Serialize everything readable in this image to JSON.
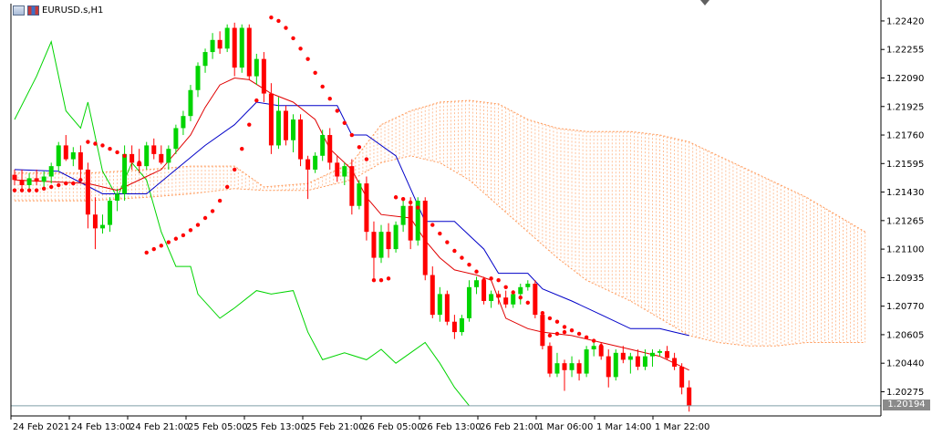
{
  "window": {
    "symbol_title": "EURUSD.s,H1"
  },
  "colors": {
    "bull": "#00d400",
    "bear": "#ff0000",
    "tenkan": "#e00000",
    "kijun": "#0000c8",
    "chikou": "#00d400",
    "cloud": "#ff9a5a",
    "sar": "#ff0000",
    "grid_frame": "#000000",
    "current_price_line": "#7f9fa6"
  },
  "current_price": "1.20194",
  "chart_data": {
    "type": "candlestick",
    "title": "EURUSD.s,H1",
    "ylim": [
      1.20135,
      1.2252
    ],
    "y_ticks": [
      "1.22420",
      "1.22255",
      "1.22090",
      "1.21925",
      "1.21760",
      "1.21595",
      "1.21430",
      "1.21265",
      "1.21100",
      "1.20935",
      "1.20770",
      "1.20605",
      "1.20440",
      "1.20275"
    ],
    "x_ticks": [
      "24 Feb 2021",
      "24 Feb 13:00",
      "24 Feb 21:00",
      "25 Feb 05:00",
      "25 Feb 13:00",
      "25 Feb 21:00",
      "26 Feb 05:00",
      "26 Feb 13:00",
      "26 Feb 21:00",
      "1 Mar 06:00",
      "1 Mar 14:00",
      "1 Mar 22:00"
    ],
    "candles": [
      [
        1.2153,
        1.2156,
        1.2147,
        1.215
      ],
      [
        1.215,
        1.2156,
        1.2144,
        1.2147
      ],
      [
        1.2147,
        1.2154,
        1.2143,
        1.2151
      ],
      [
        1.2151,
        1.2156,
        1.2147,
        1.2149
      ],
      [
        1.2149,
        1.2155,
        1.2144,
        1.2152
      ],
      [
        1.2152,
        1.216,
        1.2148,
        1.2158
      ],
      [
        1.2158,
        1.2172,
        1.2155,
        1.217
      ],
      [
        1.217,
        1.2176,
        1.2161,
        1.2162
      ],
      [
        1.2162,
        1.2169,
        1.2158,
        1.2166
      ],
      [
        1.2166,
        1.217,
        1.215,
        1.2156
      ],
      [
        1.2156,
        1.216,
        1.2122,
        1.213
      ],
      [
        1.213,
        1.214,
        1.211,
        1.2122
      ],
      [
        1.2122,
        1.213,
        1.2119,
        1.2124
      ],
      [
        1.2124,
        1.214,
        1.212,
        1.2138
      ],
      [
        1.2138,
        1.2145,
        1.2132,
        1.2142
      ],
      [
        1.2142,
        1.217,
        1.2138,
        1.2165
      ],
      [
        1.2165,
        1.217,
        1.2156,
        1.216
      ],
      [
        1.216,
        1.2168,
        1.2154,
        1.2158
      ],
      [
        1.2158,
        1.2172,
        1.2156,
        1.217
      ],
      [
        1.217,
        1.2174,
        1.2162,
        1.2165
      ],
      [
        1.2165,
        1.217,
        1.2159,
        1.216
      ],
      [
        1.216,
        1.217,
        1.2156,
        1.2168
      ],
      [
        1.2168,
        1.2182,
        1.2165,
        1.218
      ],
      [
        1.218,
        1.219,
        1.2176,
        1.2187
      ],
      [
        1.2187,
        1.2205,
        1.2184,
        1.2202
      ],
      [
        1.2202,
        1.2218,
        1.2198,
        1.2216
      ],
      [
        1.2216,
        1.2226,
        1.2212,
        1.2224
      ],
      [
        1.2224,
        1.2235,
        1.222,
        1.2231
      ],
      [
        1.2231,
        1.2236,
        1.2223,
        1.2226
      ],
      [
        1.2226,
        1.224,
        1.2224,
        1.2238
      ],
      [
        1.2238,
        1.2241,
        1.221,
        1.2215
      ],
      [
        1.2215,
        1.224,
        1.2212,
        1.2238
      ],
      [
        1.2238,
        1.224,
        1.2208,
        1.221
      ],
      [
        1.221,
        1.2223,
        1.2205,
        1.222
      ],
      [
        1.222,
        1.2224,
        1.2195,
        1.22
      ],
      [
        1.22,
        1.2206,
        1.2165,
        1.217
      ],
      [
        1.217,
        1.2198,
        1.2168,
        1.219
      ],
      [
        1.219,
        1.2193,
        1.217,
        1.2173
      ],
      [
        1.2173,
        1.2188,
        1.2166,
        1.2185
      ],
      [
        1.2185,
        1.2188,
        1.2158,
        1.2162
      ],
      [
        1.2162,
        1.2164,
        1.2139,
        1.2156
      ],
      [
        1.2156,
        1.2166,
        1.2154,
        1.2164
      ],
      [
        1.2164,
        1.2179,
        1.2161,
        1.2176
      ],
      [
        1.2176,
        1.218,
        1.2156,
        1.216
      ],
      [
        1.216,
        1.2164,
        1.2149,
        1.2152
      ],
      [
        1.2152,
        1.216,
        1.2147,
        1.2158
      ],
      [
        1.2158,
        1.2162,
        1.213,
        1.2135
      ],
      [
        1.2135,
        1.215,
        1.2133,
        1.2148
      ],
      [
        1.2148,
        1.2152,
        1.2115,
        1.212
      ],
      [
        1.212,
        1.2126,
        1.2093,
        1.2105
      ],
      [
        1.2105,
        1.2124,
        1.2102,
        1.212
      ],
      [
        1.212,
        1.2125,
        1.2105,
        1.211
      ],
      [
        1.211,
        1.2126,
        1.2108,
        1.2124
      ],
      [
        1.2124,
        1.2138,
        1.212,
        1.2135
      ],
      [
        1.2135,
        1.214,
        1.211,
        1.2115
      ],
      [
        1.2115,
        1.214,
        1.2112,
        1.2138
      ],
      [
        1.2138,
        1.214,
        1.2092,
        1.2095
      ],
      [
        1.2095,
        1.21,
        1.207,
        1.2072
      ],
      [
        1.2072,
        1.2088,
        1.2068,
        1.2084
      ],
      [
        1.2084,
        1.2086,
        1.2066,
        1.2068
      ],
      [
        1.2068,
        1.2072,
        1.2058,
        1.2062
      ],
      [
        1.2062,
        1.2072,
        1.206,
        1.207
      ],
      [
        1.207,
        1.2092,
        1.2068,
        1.2088
      ],
      [
        1.2088,
        1.2094,
        1.2084,
        1.2092
      ],
      [
        1.2092,
        1.2094,
        1.2078,
        1.208
      ],
      [
        1.208,
        1.2086,
        1.2076,
        1.2084
      ],
      [
        1.2084,
        1.2086,
        1.2078,
        1.2082
      ],
      [
        1.2082,
        1.2086,
        1.2076,
        1.2078
      ],
      [
        1.2078,
        1.2086,
        1.2076,
        1.2084
      ],
      [
        1.2084,
        1.209,
        1.2078,
        1.2088
      ],
      [
        1.2088,
        1.2092,
        1.2086,
        1.209
      ],
      [
        1.209,
        1.2092,
        1.207,
        1.2072
      ],
      [
        1.2072,
        1.2074,
        1.2052,
        1.2054
      ],
      [
        1.2054,
        1.2056,
        1.2036,
        1.2038
      ],
      [
        1.2038,
        1.205,
        1.2036,
        1.2044
      ],
      [
        1.2044,
        1.2046,
        1.2028,
        1.204
      ],
      [
        1.204,
        1.2048,
        1.2036,
        1.2044
      ],
      [
        1.2044,
        1.2046,
        1.2034,
        1.2038
      ],
      [
        1.2038,
        1.2054,
        1.2036,
        1.2052
      ],
      [
        1.2052,
        1.2056,
        1.2048,
        1.2054
      ],
      [
        1.2054,
        1.2056,
        1.2046,
        1.2048
      ],
      [
        1.2048,
        1.2052,
        1.203,
        1.2036
      ],
      [
        1.2036,
        1.2052,
        1.2034,
        1.205
      ],
      [
        1.205,
        1.2054,
        1.2044,
        1.2046
      ],
      [
        1.2046,
        1.205,
        1.2038,
        1.2048
      ],
      [
        1.2048,
        1.2052,
        1.204,
        1.2042
      ],
      [
        1.2042,
        1.2052,
        1.204,
        1.2048
      ],
      [
        1.2048,
        1.2052,
        1.2042,
        1.205
      ],
      [
        1.205,
        1.2052,
        1.2048,
        1.2051
      ],
      [
        1.2051,
        1.2054,
        1.2046,
        1.2047
      ],
      [
        1.2047,
        1.205,
        1.204,
        1.2042
      ],
      [
        1.2042,
        1.2044,
        1.2026,
        1.203
      ],
      [
        1.203,
        1.2034,
        1.2016,
        1.20194
      ]
    ],
    "tenkan": [
      [
        0,
        1.215
      ],
      [
        10,
        1.2148
      ],
      [
        14,
        1.2144
      ],
      [
        18,
        1.2152
      ],
      [
        20,
        1.2156
      ],
      [
        24,
        1.2176
      ],
      [
        26,
        1.2192
      ],
      [
        28,
        1.2205
      ],
      [
        30,
        1.2209
      ],
      [
        32,
        1.2208
      ],
      [
        35,
        1.22
      ],
      [
        38,
        1.2195
      ],
      [
        41,
        1.2185
      ],
      [
        43,
        1.2168
      ],
      [
        46,
        1.2156
      ],
      [
        48,
        1.214
      ],
      [
        50,
        1.213
      ],
      [
        54,
        1.2128
      ],
      [
        56,
        1.2115
      ],
      [
        58,
        1.2105
      ],
      [
        60,
        1.2098
      ],
      [
        63,
        1.2095
      ],
      [
        65,
        1.2092
      ],
      [
        67,
        1.207
      ],
      [
        70,
        1.2064
      ],
      [
        72,
        1.2062
      ],
      [
        76,
        1.206
      ],
      [
        80,
        1.2056
      ],
      [
        84,
        1.2052
      ],
      [
        88,
        1.2048
      ],
      [
        92,
        1.204
      ]
    ],
    "kijun": [
      [
        0,
        1.2156
      ],
      [
        6,
        1.2155
      ],
      [
        12,
        1.2142
      ],
      [
        18,
        1.2142
      ],
      [
        22,
        1.2156
      ],
      [
        26,
        1.217
      ],
      [
        30,
        1.2182
      ],
      [
        33,
        1.2195
      ],
      [
        36,
        1.2193
      ],
      [
        40,
        1.2193
      ],
      [
        44,
        1.2193
      ],
      [
        46,
        1.2176
      ],
      [
        48,
        1.2176
      ],
      [
        52,
        1.2164
      ],
      [
        56,
        1.2126
      ],
      [
        60,
        1.2126
      ],
      [
        64,
        1.211
      ],
      [
        66,
        1.2096
      ],
      [
        70,
        1.2096
      ],
      [
        72,
        1.2087
      ],
      [
        76,
        1.208
      ],
      [
        80,
        1.2072
      ],
      [
        84,
        1.2064
      ],
      [
        88,
        1.2064
      ],
      [
        90,
        1.2062
      ],
      [
        92,
        1.206
      ]
    ],
    "chikou": [
      [
        0,
        1.2185
      ],
      [
        3,
        1.221
      ],
      [
        5,
        1.223
      ],
      [
        7,
        1.219
      ],
      [
        9,
        1.218
      ],
      [
        10,
        1.2195
      ],
      [
        12,
        1.2155
      ],
      [
        14,
        1.214
      ],
      [
        16,
        1.216
      ],
      [
        18,
        1.215
      ],
      [
        20,
        1.212
      ],
      [
        22,
        1.21
      ],
      [
        24,
        1.21
      ],
      [
        25,
        1.2084
      ],
      [
        28,
        1.207
      ],
      [
        30,
        1.2076
      ],
      [
        33,
        1.2086
      ],
      [
        35,
        1.2084
      ],
      [
        38,
        1.2086
      ],
      [
        40,
        1.2062
      ],
      [
        42,
        1.2046
      ],
      [
        45,
        1.205
      ],
      [
        48,
        1.2046
      ],
      [
        50,
        1.2052
      ],
      [
        52,
        1.2044
      ],
      [
        54,
        1.205
      ],
      [
        56,
        1.2056
      ],
      [
        58,
        1.2044
      ],
      [
        60,
        1.203
      ],
      [
        62,
        1.20194
      ]
    ],
    "cloud_upper": [
      [
        0,
        1.2154
      ],
      [
        10,
        1.2154
      ],
      [
        18,
        1.2156
      ],
      [
        24,
        1.2158
      ],
      [
        30,
        1.2158
      ],
      [
        34,
        1.2146
      ],
      [
        40,
        1.2148
      ],
      [
        46,
        1.216
      ],
      [
        50,
        1.2182
      ],
      [
        54,
        1.219
      ],
      [
        58,
        1.2195
      ],
      [
        62,
        1.2196
      ],
      [
        66,
        1.2194
      ],
      [
        70,
        1.2185
      ],
      [
        74,
        1.218
      ],
      [
        78,
        1.2178
      ],
      [
        84,
        1.2178
      ],
      [
        88,
        1.2176
      ],
      [
        92,
        1.2172
      ],
      [
        96,
        1.2164
      ],
      [
        100,
        1.2156
      ],
      [
        104,
        1.2148
      ],
      [
        108,
        1.214
      ],
      [
        112,
        1.213
      ],
      [
        116,
        1.212
      ]
    ],
    "cloud_lower": [
      [
        0,
        1.2138
      ],
      [
        10,
        1.2138
      ],
      [
        18,
        1.214
      ],
      [
        24,
        1.2142
      ],
      [
        30,
        1.2145
      ],
      [
        34,
        1.2144
      ],
      [
        40,
        1.2144
      ],
      [
        46,
        1.215
      ],
      [
        50,
        1.216
      ],
      [
        54,
        1.2164
      ],
      [
        58,
        1.216
      ],
      [
        62,
        1.215
      ],
      [
        66,
        1.2135
      ],
      [
        70,
        1.212
      ],
      [
        74,
        1.2105
      ],
      [
        78,
        1.2092
      ],
      [
        84,
        1.208
      ],
      [
        88,
        1.207
      ],
      [
        92,
        1.206
      ],
      [
        96,
        1.2056
      ],
      [
        100,
        1.2054
      ],
      [
        104,
        1.2054
      ],
      [
        108,
        1.2056
      ],
      [
        112,
        1.2056
      ],
      [
        116,
        1.2056
      ]
    ],
    "sar": [
      [
        0,
        1.2144
      ],
      [
        1,
        1.2144
      ],
      [
        2,
        1.2144
      ],
      [
        3,
        1.2144
      ],
      [
        4,
        1.2145
      ],
      [
        5,
        1.2146
      ],
      [
        6,
        1.2147
      ],
      [
        7,
        1.2148
      ],
      [
        8,
        1.2148
      ],
      [
        9,
        1.215
      ],
      [
        10,
        1.2172
      ],
      [
        11,
        1.2171
      ],
      [
        12,
        1.217
      ],
      [
        13,
        1.2168
      ],
      [
        14,
        1.2166
      ],
      [
        15,
        1.2164
      ],
      [
        16,
        1.2162
      ],
      [
        17,
        1.216
      ],
      [
        18,
        1.2108
      ],
      [
        19,
        1.211
      ],
      [
        20,
        1.2112
      ],
      [
        21,
        1.2114
      ],
      [
        22,
        1.2116
      ],
      [
        23,
        1.2118
      ],
      [
        24,
        1.2121
      ],
      [
        25,
        1.2124
      ],
      [
        26,
        1.2128
      ],
      [
        27,
        1.2132
      ],
      [
        28,
        1.2138
      ],
      [
        29,
        1.2146
      ],
      [
        30,
        1.2156
      ],
      [
        31,
        1.2168
      ],
      [
        32,
        1.2182
      ],
      [
        33,
        1.2196
      ],
      [
        34,
        1.2214
      ],
      [
        35,
        1.2244
      ],
      [
        36,
        1.2242
      ],
      [
        37,
        1.2238
      ],
      [
        38,
        1.2232
      ],
      [
        39,
        1.2226
      ],
      [
        40,
        1.222
      ],
      [
        41,
        1.2212
      ],
      [
        42,
        1.2204
      ],
      [
        43,
        1.2197
      ],
      [
        44,
        1.219
      ],
      [
        45,
        1.2183
      ],
      [
        46,
        1.2176
      ],
      [
        47,
        1.2169
      ],
      [
        48,
        1.2162
      ],
      [
        49,
        1.2092
      ],
      [
        50,
        1.2092
      ],
      [
        51,
        1.2093
      ],
      [
        52,
        1.214
      ],
      [
        53,
        1.2139
      ],
      [
        54,
        1.2137
      ],
      [
        55,
        1.2134
      ],
      [
        56,
        1.2129
      ],
      [
        57,
        1.2124
      ],
      [
        58,
        1.2119
      ],
      [
        59,
        1.2114
      ],
      [
        60,
        1.2109
      ],
      [
        61,
        1.2105
      ],
      [
        62,
        1.2101
      ],
      [
        63,
        1.2097
      ],
      [
        64,
        1.2092
      ],
      [
        65,
        1.2093
      ],
      [
        66,
        1.2092
      ],
      [
        67,
        1.2088
      ],
      [
        68,
        1.2085
      ],
      [
        69,
        1.2082
      ],
      [
        70,
        1.2079
      ],
      [
        71,
        1.2076
      ],
      [
        72,
        1.2073
      ],
      [
        73,
        1.207
      ],
      [
        74,
        1.2068
      ],
      [
        75,
        1.2065
      ],
      [
        76,
        1.2063
      ],
      [
        77,
        1.2061
      ],
      [
        78,
        1.2059
      ],
      [
        79,
        1.2057
      ],
      [
        80,
        1.2054
      ]
    ],
    "sar_low_run": [
      [
        73,
        1.206
      ],
      [
        74,
        1.2061
      ],
      [
        75,
        1.2062
      ]
    ]
  }
}
